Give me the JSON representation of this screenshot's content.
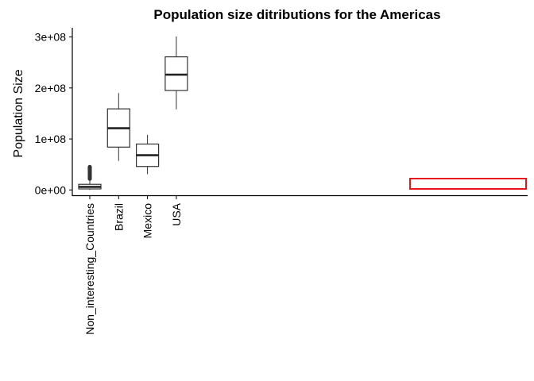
{
  "chart_data": {
    "type": "box",
    "title": "Population size ditributions for the Americas",
    "ylabel": "Population Size",
    "xlabel": "",
    "ylim": [
      -12000000,
      318000000
    ],
    "yticks": [
      0,
      100000000,
      200000000,
      300000000
    ],
    "ytick_labels": [
      "0e+00",
      "1e+08",
      "2e+08",
      "3e+08"
    ],
    "categories": [
      "Non_interesting_Countries",
      "Brazil",
      "Mexico",
      "USA"
    ],
    "boxes": [
      {
        "category": "Non_interesting_Countries",
        "whisker_low": 0,
        "q1": 2000000,
        "median": 6000000,
        "q3": 11000000,
        "whisker_high": 20000000,
        "outliers": [
          22000000,
          25000000,
          28000000,
          31000000,
          34000000,
          37000000,
          40000000,
          43000000,
          45000000
        ]
      },
      {
        "category": "Brazil",
        "whisker_low": 57000000,
        "q1": 84000000,
        "median": 121000000,
        "q3": 159000000,
        "whisker_high": 190000000,
        "outliers": []
      },
      {
        "category": "Mexico",
        "whisker_low": 31000000,
        "q1": 46000000,
        "median": 68000000,
        "q3": 90000000,
        "whisker_high": 108000000,
        "outliers": []
      },
      {
        "category": "USA",
        "whisker_low": 158000000,
        "q1": 195000000,
        "median": 226000000,
        "q3": 261000000,
        "whisker_high": 301000000,
        "outliers": []
      }
    ],
    "highlight": {
      "color": "#e8141c"
    },
    "grid": false,
    "legend": "none"
  }
}
